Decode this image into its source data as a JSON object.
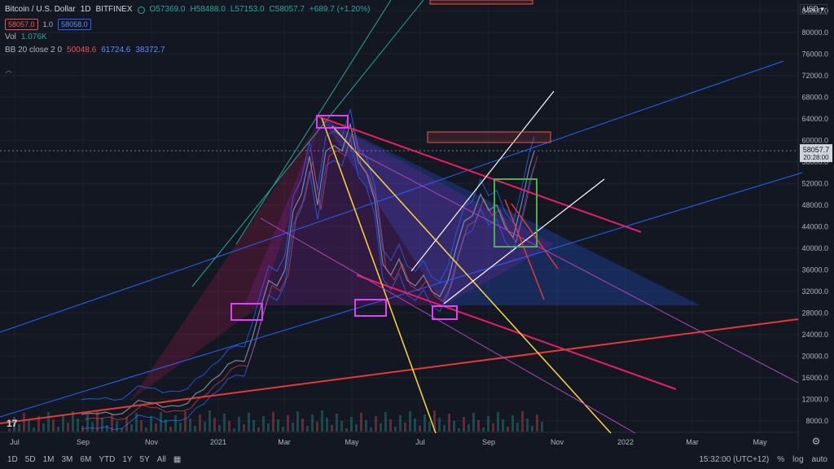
{
  "header": {
    "symbol": "Bitcoin / U.S. Dollar",
    "interval": "1D",
    "exchange": "BITFINEX",
    "ohlc": {
      "o": "O57369.0",
      "h": "H58488.0",
      "l": "L57153.0",
      "c": "C58057.7",
      "chg": "+689.7 (+1.20%)"
    },
    "bid": "58057.0",
    "spread": "1.0",
    "ask": "58058.0",
    "currency": "USD"
  },
  "indicators": {
    "vol": {
      "label": "Vol",
      "value": "1.076K"
    },
    "bb": {
      "label": "BB 20 close 2 0",
      "basis": "50048.6",
      "upper": "61724.6",
      "lower": "38372.7"
    }
  },
  "bottom": {
    "ranges": [
      "1D",
      "5D",
      "1M",
      "3M",
      "6M",
      "YTD",
      "1Y",
      "5Y",
      "All"
    ],
    "time": "15:32:00 (UTC+12)",
    "pct": "%",
    "log": "log",
    "auto": "auto"
  },
  "chart_data": {
    "type": "line",
    "title": "Bitcoin / U.S. Dollar",
    "y_ticks": [
      8000,
      12000,
      16000,
      20000,
      24000,
      28000,
      32000,
      36000,
      40000,
      44000,
      48000,
      52000,
      56000,
      60000,
      64000,
      68000,
      72000,
      76000,
      80000,
      84000
    ],
    "ylim": [
      6000,
      86000
    ],
    "x_ticks": [
      "Jul",
      "Sep",
      "Nov",
      "2021",
      "Mar",
      "May",
      "Jul",
      "Sep",
      "Nov",
      "2022",
      "Mar",
      "May"
    ],
    "last_price": "58057.7",
    "countdown": "20:28:00",
    "series": [
      {
        "values": [
          [
            0,
            9200
          ],
          [
            10,
            9400
          ],
          [
            20,
            9300
          ],
          [
            30,
            9600
          ],
          [
            40,
            9100
          ],
          [
            50,
            9300
          ],
          [
            60,
            10500
          ],
          [
            70,
            11800
          ],
          [
            80,
            11400
          ],
          [
            90,
            11300
          ],
          [
            100,
            10500
          ],
          [
            110,
            10800
          ],
          [
            120,
            10700
          ],
          [
            130,
            11200
          ],
          [
            140,
            13000
          ],
          [
            150,
            13800
          ],
          [
            160,
            15500
          ],
          [
            170,
            16500
          ],
          [
            180,
            18500
          ],
          [
            190,
            19200
          ],
          [
            200,
            19000
          ],
          [
            210,
            23500
          ],
          [
            220,
            29000
          ],
          [
            230,
            34000
          ],
          [
            240,
            33000
          ],
          [
            250,
            36000
          ],
          [
            260,
            47000
          ],
          [
            270,
            50000
          ],
          [
            280,
            57000
          ],
          [
            290,
            48000
          ],
          [
            300,
            58000
          ],
          [
            310,
            59000
          ],
          [
            320,
            58000
          ],
          [
            330,
            63000
          ],
          [
            340,
            56000
          ],
          [
            350,
            54000
          ],
          [
            360,
            49000
          ],
          [
            370,
            37000
          ],
          [
            380,
            35000
          ],
          [
            390,
            38000
          ],
          [
            400,
            34000
          ],
          [
            410,
            33000
          ],
          [
            420,
            35000
          ],
          [
            430,
            32000
          ],
          [
            440,
            31000
          ],
          [
            450,
            34000
          ],
          [
            460,
            40000
          ],
          [
            470,
            45000
          ],
          [
            480,
            46000
          ],
          [
            490,
            50000
          ],
          [
            500,
            47000
          ],
          [
            510,
            48000
          ],
          [
            520,
            44000
          ],
          [
            530,
            42000
          ],
          [
            540,
            48000
          ],
          [
            550,
            55000
          ],
          [
            556,
            58000
          ]
        ]
      }
    ]
  }
}
